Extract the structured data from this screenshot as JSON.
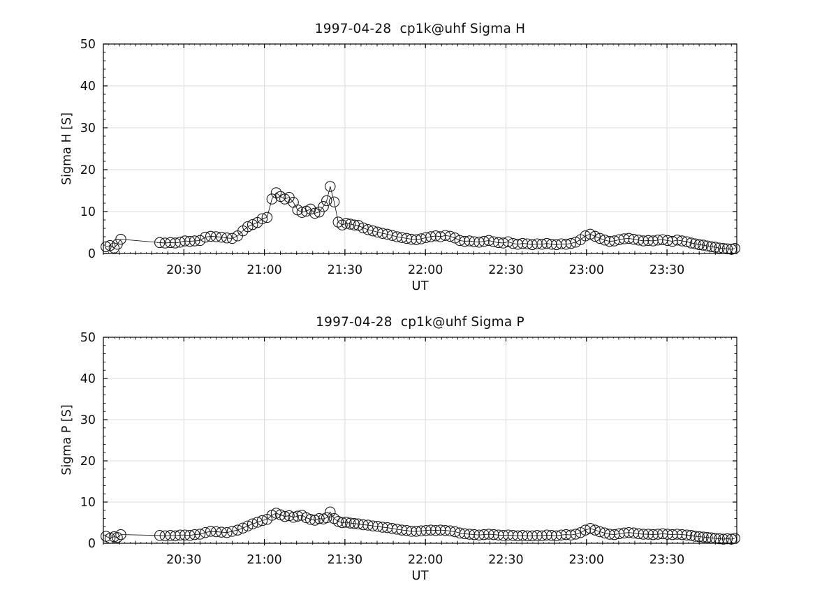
{
  "figure": {
    "background": "#ffffff",
    "axis_color": "#000000",
    "grid_color": "#dcdcdc",
    "line_color": "#1a1a1a",
    "marker_style": "open-circle",
    "tick_label_color": "#111111"
  },
  "chart_data": [
    {
      "type": "line",
      "title": "1997-04-28  cp1k@uhf Sigma H",
      "xlabel": "UT",
      "ylabel": "Sigma H [S]",
      "ylim": [
        0,
        50
      ],
      "ytick_labels": [
        "0",
        "10",
        "20",
        "30",
        "40",
        "50"
      ],
      "ytick_values": [
        0,
        10,
        20,
        30,
        40,
        50
      ],
      "y_minor_step": 2,
      "xlim_minutes_after_2000": [
        0,
        236
      ],
      "xtick_labels": [
        "20:30",
        "21:00",
        "21:30",
        "22:00",
        "22:30",
        "23:00",
        "23:30"
      ],
      "x_minor_step_minutes": 6,
      "grid": true,
      "legend": "none",
      "marker": "circle",
      "points": [
        [
          1,
          1.6
        ],
        [
          2.5,
          1.9
        ],
        [
          4,
          1.3
        ],
        [
          5.2,
          2.2
        ],
        [
          6.5,
          3.4
        ],
        [
          21,
          2.6
        ],
        [
          23,
          2.5
        ],
        [
          25,
          2.6
        ],
        [
          26.8,
          2.5
        ],
        [
          28.6,
          2.7
        ],
        [
          30.4,
          3.0
        ],
        [
          32.2,
          2.9
        ],
        [
          34,
          3.0
        ],
        [
          36,
          3.1
        ],
        [
          38,
          3.9
        ],
        [
          40,
          4.1
        ],
        [
          42,
          4.0
        ],
        [
          44,
          3.9
        ],
        [
          46,
          3.7
        ],
        [
          48,
          3.6
        ],
        [
          50,
          4.2
        ],
        [
          52,
          5.4
        ],
        [
          53.8,
          6.4
        ],
        [
          55.6,
          6.9
        ],
        [
          57.4,
          7.4
        ],
        [
          59.2,
          8.3
        ],
        [
          61,
          8.6
        ],
        [
          62.8,
          13.0
        ],
        [
          64.4,
          14.5
        ],
        [
          66,
          13.6
        ],
        [
          67.6,
          13.0
        ],
        [
          69.2,
          13.4
        ],
        [
          70.8,
          12.2
        ],
        [
          72.4,
          10.4
        ],
        [
          74,
          9.8
        ],
        [
          75.6,
          10.1
        ],
        [
          77.2,
          10.6
        ],
        [
          78.8,
          9.6
        ],
        [
          80.4,
          9.9
        ],
        [
          82,
          11.2
        ],
        [
          83.2,
          12.6
        ],
        [
          84.5,
          16.0
        ],
        [
          86,
          12.3
        ],
        [
          87.5,
          7.5
        ],
        [
          89,
          6.8
        ],
        [
          90.5,
          7.2
        ],
        [
          92,
          7.0
        ],
        [
          93.5,
          6.8
        ],
        [
          95,
          6.7
        ],
        [
          96.8,
          6.1
        ],
        [
          98.6,
          5.7
        ],
        [
          100.4,
          5.4
        ],
        [
          102.2,
          5.1
        ],
        [
          104,
          4.8
        ],
        [
          105.8,
          4.6
        ],
        [
          107.6,
          4.3
        ],
        [
          109.4,
          4.0
        ],
        [
          111.2,
          3.8
        ],
        [
          113,
          3.6
        ],
        [
          114.8,
          3.4
        ],
        [
          116.6,
          3.3
        ],
        [
          118.4,
          3.5
        ],
        [
          120.2,
          3.8
        ],
        [
          122,
          4.0
        ],
        [
          123.8,
          4.2
        ],
        [
          125.6,
          4.0
        ],
        [
          127.4,
          4.3
        ],
        [
          129.2,
          4.1
        ],
        [
          131,
          3.7
        ],
        [
          132.8,
          3.1
        ],
        [
          134.6,
          2.9
        ],
        [
          136.4,
          3.0
        ],
        [
          138.2,
          2.8
        ],
        [
          140,
          2.7
        ],
        [
          141.8,
          2.9
        ],
        [
          143.6,
          3.1
        ],
        [
          145.4,
          2.8
        ],
        [
          147.2,
          2.6
        ],
        [
          149,
          2.5
        ],
        [
          150.8,
          2.8
        ],
        [
          152.6,
          2.4
        ],
        [
          154.4,
          2.2
        ],
        [
          156.2,
          2.4
        ],
        [
          158,
          2.3
        ],
        [
          159.8,
          2.1
        ],
        [
          161.6,
          2.3
        ],
        [
          163.4,
          2.2
        ],
        [
          165.2,
          2.4
        ],
        [
          167,
          2.2
        ],
        [
          168.8,
          2.1
        ],
        [
          170.6,
          2.3
        ],
        [
          172.4,
          2.2
        ],
        [
          174.2,
          2.4
        ],
        [
          176,
          2.7
        ],
        [
          177.8,
          3.3
        ],
        [
          179.6,
          4.2
        ],
        [
          181.4,
          4.6
        ],
        [
          183.2,
          4.1
        ],
        [
          185,
          3.6
        ],
        [
          186.8,
          3.2
        ],
        [
          188.6,
          2.9
        ],
        [
          190.4,
          3.0
        ],
        [
          192.2,
          3.3
        ],
        [
          194,
          3.5
        ],
        [
          195.8,
          3.6
        ],
        [
          197.6,
          3.4
        ],
        [
          199.4,
          3.2
        ],
        [
          201.2,
          3.0
        ],
        [
          203,
          3.1
        ],
        [
          204.8,
          3.0
        ],
        [
          206.6,
          3.2
        ],
        [
          208.4,
          3.3
        ],
        [
          210.2,
          3.1
        ],
        [
          212,
          2.9
        ],
        [
          213.8,
          3.2
        ],
        [
          215.6,
          3.0
        ],
        [
          217.4,
          2.8
        ],
        [
          219,
          2.5
        ],
        [
          220.5,
          2.3
        ],
        [
          222,
          2.1
        ],
        [
          223.5,
          2.0
        ],
        [
          225,
          1.8
        ],
        [
          226.5,
          1.6
        ],
        [
          228,
          1.5
        ],
        [
          229.5,
          1.3
        ],
        [
          231,
          1.2
        ],
        [
          232.5,
          1.1
        ],
        [
          234,
          1.0
        ],
        [
          235.3,
          1.2
        ]
      ]
    },
    {
      "type": "line",
      "title": "1997-04-28  cp1k@uhf Sigma P",
      "xlabel": "UT",
      "ylabel": "Sigma P [S]",
      "ylim": [
        0,
        50
      ],
      "ytick_labels": [
        "0",
        "10",
        "20",
        "30",
        "40",
        "50"
      ],
      "ytick_values": [
        0,
        10,
        20,
        30,
        40,
        50
      ],
      "y_minor_step": 2,
      "xlim_minutes_after_2000": [
        0,
        236
      ],
      "xtick_labels": [
        "20:30",
        "21:00",
        "21:30",
        "22:00",
        "22:30",
        "23:00",
        "23:30"
      ],
      "x_minor_step_minutes": 6,
      "grid": true,
      "legend": "none",
      "marker": "circle",
      "points": [
        [
          1,
          1.7
        ],
        [
          2.5,
          1.2
        ],
        [
          4,
          1.6
        ],
        [
          5.2,
          1.4
        ],
        [
          6.5,
          2.1
        ],
        [
          21,
          1.9
        ],
        [
          23,
          1.8
        ],
        [
          25,
          1.9
        ],
        [
          26.8,
          1.8
        ],
        [
          28.6,
          2.0
        ],
        [
          30.4,
          2.0
        ],
        [
          32.2,
          1.9
        ],
        [
          34,
          2.1
        ],
        [
          36,
          2.2
        ],
        [
          38,
          2.6
        ],
        [
          40,
          2.9
        ],
        [
          42,
          2.8
        ],
        [
          44,
          2.7
        ],
        [
          46,
          2.6
        ],
        [
          48,
          2.9
        ],
        [
          50,
          3.2
        ],
        [
          52,
          3.7
        ],
        [
          53.8,
          4.2
        ],
        [
          55.6,
          4.7
        ],
        [
          57.4,
          5.1
        ],
        [
          59.2,
          5.5
        ],
        [
          61,
          5.8
        ],
        [
          62.8,
          6.8
        ],
        [
          64.4,
          7.3
        ],
        [
          66,
          6.9
        ],
        [
          67.6,
          6.5
        ],
        [
          69.2,
          6.7
        ],
        [
          70.8,
          6.3
        ],
        [
          72.4,
          6.6
        ],
        [
          74,
          6.8
        ],
        [
          75.6,
          6.2
        ],
        [
          77.2,
          5.8
        ],
        [
          78.8,
          5.6
        ],
        [
          80.4,
          6.0
        ],
        [
          82,
          5.9
        ],
        [
          83.2,
          6.2
        ],
        [
          84.5,
          7.6
        ],
        [
          86,
          6.0
        ],
        [
          87.5,
          5.3
        ],
        [
          89,
          5.0
        ],
        [
          90.5,
          5.1
        ],
        [
          92,
          4.9
        ],
        [
          93.5,
          4.8
        ],
        [
          95,
          4.7
        ],
        [
          96.8,
          4.5
        ],
        [
          98.6,
          4.4
        ],
        [
          100.4,
          4.2
        ],
        [
          102.2,
          4.1
        ],
        [
          104,
          3.9
        ],
        [
          105.8,
          3.8
        ],
        [
          107.6,
          3.6
        ],
        [
          109.4,
          3.4
        ],
        [
          111.2,
          3.2
        ],
        [
          113,
          3.1
        ],
        [
          114.8,
          2.9
        ],
        [
          116.6,
          2.9
        ],
        [
          118.4,
          3.0
        ],
        [
          120.2,
          3.1
        ],
        [
          122,
          3.2
        ],
        [
          123.8,
          3.1
        ],
        [
          125.6,
          3.2
        ],
        [
          127.4,
          3.1
        ],
        [
          129.2,
          3.0
        ],
        [
          131,
          2.8
        ],
        [
          132.8,
          2.5
        ],
        [
          134.6,
          2.3
        ],
        [
          136.4,
          2.2
        ],
        [
          138.2,
          2.1
        ],
        [
          140,
          2.0
        ],
        [
          141.8,
          2.1
        ],
        [
          143.6,
          2.2
        ],
        [
          145.4,
          2.1
        ],
        [
          147.2,
          2.0
        ],
        [
          149,
          1.9
        ],
        [
          150.8,
          2.0
        ],
        [
          152.6,
          1.9
        ],
        [
          154.4,
          1.8
        ],
        [
          156.2,
          1.9
        ],
        [
          158,
          1.8
        ],
        [
          159.8,
          1.8
        ],
        [
          161.6,
          1.9
        ],
        [
          163.4,
          1.8
        ],
        [
          165.2,
          2.0
        ],
        [
          167,
          1.9
        ],
        [
          168.8,
          1.8
        ],
        [
          170.6,
          2.0
        ],
        [
          172.4,
          2.1
        ],
        [
          174.2,
          2.0
        ],
        [
          176,
          2.2
        ],
        [
          177.8,
          2.6
        ],
        [
          179.6,
          3.2
        ],
        [
          181.4,
          3.6
        ],
        [
          183.2,
          3.2
        ],
        [
          185,
          2.8
        ],
        [
          186.8,
          2.5
        ],
        [
          188.6,
          2.2
        ],
        [
          190.4,
          2.1
        ],
        [
          192.2,
          2.3
        ],
        [
          194,
          2.5
        ],
        [
          195.8,
          2.6
        ],
        [
          197.6,
          2.5
        ],
        [
          199.4,
          2.3
        ],
        [
          201.2,
          2.2
        ],
        [
          203,
          2.2
        ],
        [
          204.8,
          2.1
        ],
        [
          206.6,
          2.2
        ],
        [
          208.4,
          2.3
        ],
        [
          210.2,
          2.2
        ],
        [
          212,
          2.1
        ],
        [
          213.8,
          2.2
        ],
        [
          215.6,
          2.1
        ],
        [
          217.4,
          2.0
        ],
        [
          219,
          1.9
        ],
        [
          220.5,
          1.7
        ],
        [
          222,
          1.6
        ],
        [
          223.5,
          1.5
        ],
        [
          225,
          1.4
        ],
        [
          226.5,
          1.3
        ],
        [
          228,
          1.2
        ],
        [
          229.5,
          1.1
        ],
        [
          231,
          1.0
        ],
        [
          232.5,
          1.1
        ],
        [
          234,
          1.0
        ],
        [
          235.3,
          1.2
        ]
      ]
    }
  ]
}
